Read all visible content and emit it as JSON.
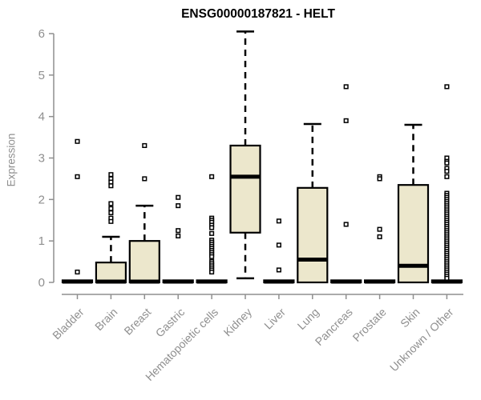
{
  "title": "ENSG00000187821 - HELT",
  "chart_data": {
    "type": "boxplot",
    "title": "ENSG00000187821 - HELT",
    "xlabel": "",
    "ylabel": "Expression",
    "ylim": [
      0,
      6
    ],
    "yticks": [
      0,
      1,
      2,
      3,
      4,
      5,
      6
    ],
    "grid": false,
    "legend": "none",
    "colors": {
      "box_fill": "#ECE7CC",
      "box_stroke": "#000000",
      "median": "#000000",
      "whisker": "#000000",
      "outlier_fill": "#ffffff",
      "outlier_stroke": "#000000",
      "axis": "#8f8f8f",
      "title_text": "#000000"
    },
    "categories": [
      "Bladder",
      "Brain",
      "Breast",
      "Gastric",
      "Hematopoietic cells",
      "Kidney",
      "Liver",
      "Lung",
      "Pancreas",
      "Prostate",
      "Skin",
      "Unknown / Other"
    ],
    "boxes": [
      {
        "label": "Bladder",
        "q1": 0,
        "median": 0.02,
        "q3": 0.05,
        "whisker_low": null,
        "whisker_high": null,
        "outliers": [
          3.4,
          2.55,
          0.25
        ]
      },
      {
        "label": "Brain",
        "q1": 0,
        "median": 0.02,
        "q3": 0.48,
        "whisker_low": null,
        "whisker_high": 1.1,
        "outliers": [
          2.6,
          2.5,
          2.42,
          2.33,
          1.9,
          1.78,
          1.68,
          1.55,
          1.47
        ]
      },
      {
        "label": "Breast",
        "q1": 0,
        "median": 0.02,
        "q3": 1.0,
        "whisker_low": null,
        "whisker_high": 1.85,
        "outliers": [
          3.3,
          2.5
        ]
      },
      {
        "label": "Gastric",
        "q1": 0,
        "median": 0.02,
        "q3": 0.05,
        "whisker_low": null,
        "whisker_high": null,
        "outliers": [
          2.05,
          1.85,
          1.25,
          1.12
        ]
      },
      {
        "label": "Hematopoietic cells",
        "q1": 0,
        "median": 0.02,
        "q3": 0.05,
        "whisker_low": null,
        "whisker_high": null,
        "outliers": [
          2.55,
          1.55,
          1.5,
          1.45,
          1.38,
          1.32,
          1.18,
          1.02,
          0.97,
          0.92,
          0.87,
          0.82,
          0.77,
          0.72,
          0.67,
          0.62,
          0.5,
          0.45,
          0.4,
          0.35,
          0.3,
          0.25
        ]
      },
      {
        "label": "Kidney",
        "q1": 1.2,
        "median": 2.55,
        "q3": 3.3,
        "whisker_low": 0.1,
        "whisker_high": 6.05,
        "outliers": []
      },
      {
        "label": "Liver",
        "q1": 0,
        "median": 0.02,
        "q3": 0.05,
        "whisker_low": null,
        "whisker_high": null,
        "outliers": [
          1.48,
          0.9,
          0.3
        ]
      },
      {
        "label": "Lung",
        "q1": 0,
        "median": 0.55,
        "q3": 2.28,
        "whisker_low": null,
        "whisker_high": 3.82,
        "outliers": []
      },
      {
        "label": "Pancreas",
        "q1": 0,
        "median": 0.02,
        "q3": 0.05,
        "whisker_low": null,
        "whisker_high": null,
        "outliers": [
          4.72,
          3.9,
          1.4
        ]
      },
      {
        "label": "Prostate",
        "q1": 0,
        "median": 0.02,
        "q3": 0.05,
        "whisker_low": null,
        "whisker_high": null,
        "outliers": [
          2.55,
          2.5,
          1.28,
          1.1
        ]
      },
      {
        "label": "Skin",
        "q1": 0,
        "median": 0.4,
        "q3": 2.35,
        "whisker_low": null,
        "whisker_high": 3.8,
        "outliers": []
      },
      {
        "label": "Unknown / Other",
        "q1": 0,
        "median": 0.02,
        "q3": 0.05,
        "whisker_low": null,
        "whisker_high": null,
        "outliers": [
          4.72,
          3.0,
          2.92,
          2.88,
          2.75,
          2.68,
          2.55,
          2.15,
          2.1,
          2.05,
          2.0,
          1.95,
          1.9,
          1.85,
          1.8,
          1.75,
          1.7,
          1.65,
          1.6,
          1.55,
          1.5,
          1.45,
          1.4,
          1.35,
          1.3,
          1.25,
          1.2,
          1.15,
          1.1,
          1.05,
          1.0,
          0.95,
          0.9,
          0.85,
          0.8,
          0.75,
          0.7,
          0.65,
          0.6,
          0.55,
          0.5,
          0.45,
          0.4,
          0.35,
          0.3,
          0.25,
          0.2,
          0.15,
          0.1
        ]
      }
    ]
  }
}
